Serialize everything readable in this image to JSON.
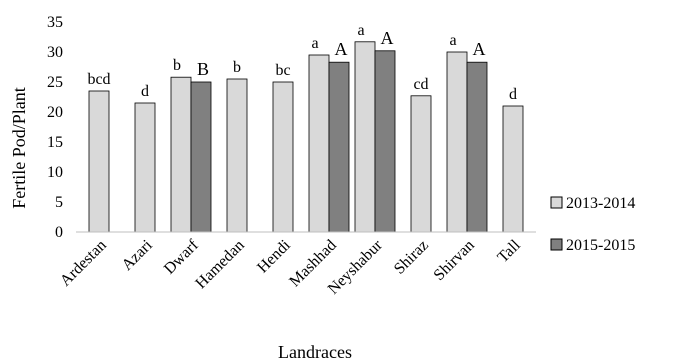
{
  "chart_data": {
    "type": "bar",
    "title": "",
    "xlabel": "Landraces",
    "ylabel": "Fertile Pod/Plant",
    "ylim": [
      0,
      35
    ],
    "yticks": [
      0,
      5,
      10,
      15,
      20,
      25,
      30,
      35
    ],
    "grid": false,
    "legend_position": "right",
    "categories": [
      "Ardestan",
      "Azari",
      "Dwarf",
      "Hamedan",
      "Hendi",
      "Mashhad",
      "Neyshabur",
      "Shiraz",
      "Shirvan",
      "Tall"
    ],
    "series": [
      {
        "name": "2013-2014",
        "color": "#d9d9d9",
        "values": [
          23.5,
          21.5,
          25.8,
          25.5,
          25.0,
          29.5,
          31.7,
          22.7,
          30.0,
          21.0
        ],
        "labels": [
          "bcd",
          "d",
          "b",
          "b",
          "bc",
          "a",
          "a",
          "cd",
          "a",
          "d"
        ]
      },
      {
        "name": "2015-2015",
        "color": "#808080",
        "values": [
          null,
          null,
          25.0,
          null,
          null,
          28.3,
          30.2,
          null,
          28.3,
          null
        ],
        "labels": [
          "",
          "",
          "B",
          "",
          "",
          "A",
          "A",
          "",
          "A",
          ""
        ]
      }
    ]
  }
}
